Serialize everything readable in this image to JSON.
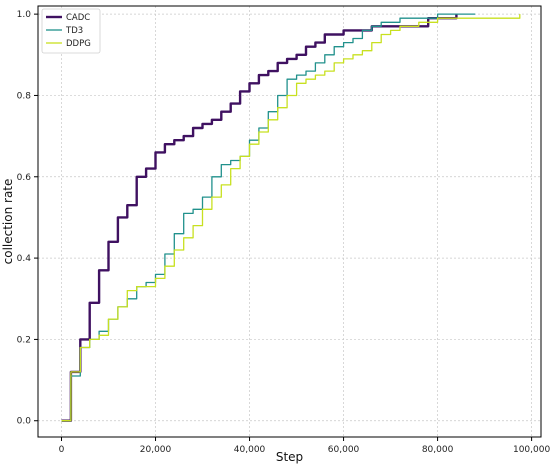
{
  "chart_data": {
    "type": "line",
    "title": "",
    "xlabel": "Step",
    "ylabel": "collection rate",
    "xlim": [
      -5000,
      102000
    ],
    "ylim": [
      -0.04,
      1.02
    ],
    "xticks": [
      0,
      20000,
      40000,
      60000,
      80000,
      100000
    ],
    "xtick_labels": [
      "0",
      "20,000",
      "40,000",
      "60,000",
      "80,000",
      "100,000"
    ],
    "yticks": [
      0.0,
      0.2,
      0.4,
      0.6,
      0.8,
      1.0
    ],
    "ytick_labels": [
      "0.0",
      "0.2",
      "0.4",
      "0.6",
      "0.8",
      "1.0"
    ],
    "grid": true,
    "legend_position": "top-left",
    "series": [
      {
        "name": "CADC",
        "color": "#3f1161",
        "width": 2.4,
        "x": [
          0,
          2000,
          4000,
          6000,
          8000,
          10000,
          12000,
          14000,
          16000,
          18000,
          20000,
          22000,
          24000,
          26000,
          28000,
          30000,
          32000,
          34000,
          36000,
          38000,
          40000,
          42000,
          44000,
          46000,
          48000,
          50000,
          52000,
          54000,
          56000,
          58000,
          60000,
          62000,
          64000,
          66000,
          70000,
          74000,
          76000,
          78000,
          80000,
          84000
        ],
        "y": [
          0.0,
          0.12,
          0.2,
          0.29,
          0.37,
          0.44,
          0.5,
          0.53,
          0.6,
          0.62,
          0.66,
          0.68,
          0.69,
          0.7,
          0.72,
          0.73,
          0.74,
          0.76,
          0.78,
          0.81,
          0.83,
          0.85,
          0.86,
          0.88,
          0.89,
          0.9,
          0.92,
          0.93,
          0.95,
          0.95,
          0.96,
          0.96,
          0.96,
          0.97,
          0.97,
          0.97,
          0.97,
          0.99,
          0.99,
          1.0
        ]
      },
      {
        "name": "TD3",
        "color": "#21918c",
        "width": 1.3,
        "x": [
          0,
          2000,
          4000,
          6000,
          8000,
          10000,
          12000,
          14000,
          16000,
          18000,
          20000,
          22000,
          24000,
          26000,
          28000,
          30000,
          32000,
          34000,
          36000,
          38000,
          40000,
          42000,
          44000,
          46000,
          48000,
          50000,
          52000,
          54000,
          56000,
          58000,
          60000,
          62000,
          64000,
          66000,
          68000,
          70000,
          72000,
          76000,
          80000,
          84000,
          88000
        ],
        "y": [
          0.0,
          0.11,
          0.18,
          0.2,
          0.22,
          0.25,
          0.28,
          0.3,
          0.33,
          0.34,
          0.36,
          0.41,
          0.46,
          0.51,
          0.52,
          0.55,
          0.6,
          0.63,
          0.64,
          0.65,
          0.69,
          0.72,
          0.76,
          0.8,
          0.84,
          0.85,
          0.86,
          0.88,
          0.9,
          0.92,
          0.93,
          0.94,
          0.96,
          0.97,
          0.98,
          0.98,
          0.99,
          0.99,
          1.0,
          1.0,
          1.0
        ]
      },
      {
        "name": "DDPG",
        "color": "#c8e020",
        "width": 1.3,
        "x": [
          0,
          2000,
          4000,
          6000,
          8000,
          10000,
          12000,
          14000,
          16000,
          18000,
          20000,
          22000,
          24000,
          26000,
          28000,
          30000,
          32000,
          34000,
          36000,
          38000,
          40000,
          42000,
          44000,
          46000,
          48000,
          50000,
          52000,
          54000,
          56000,
          58000,
          60000,
          62000,
          64000,
          66000,
          68000,
          70000,
          72000,
          76000,
          80000,
          84000,
          88000,
          92000,
          96000,
          97500
        ],
        "y": [
          0.0,
          0.12,
          0.18,
          0.2,
          0.21,
          0.25,
          0.28,
          0.32,
          0.33,
          0.33,
          0.35,
          0.38,
          0.42,
          0.45,
          0.48,
          0.52,
          0.55,
          0.58,
          0.62,
          0.65,
          0.68,
          0.71,
          0.74,
          0.77,
          0.8,
          0.83,
          0.84,
          0.85,
          0.86,
          0.88,
          0.89,
          0.9,
          0.91,
          0.93,
          0.95,
          0.96,
          0.97,
          0.98,
          0.99,
          0.99,
          0.99,
          0.99,
          0.99,
          1.0
        ]
      }
    ]
  }
}
